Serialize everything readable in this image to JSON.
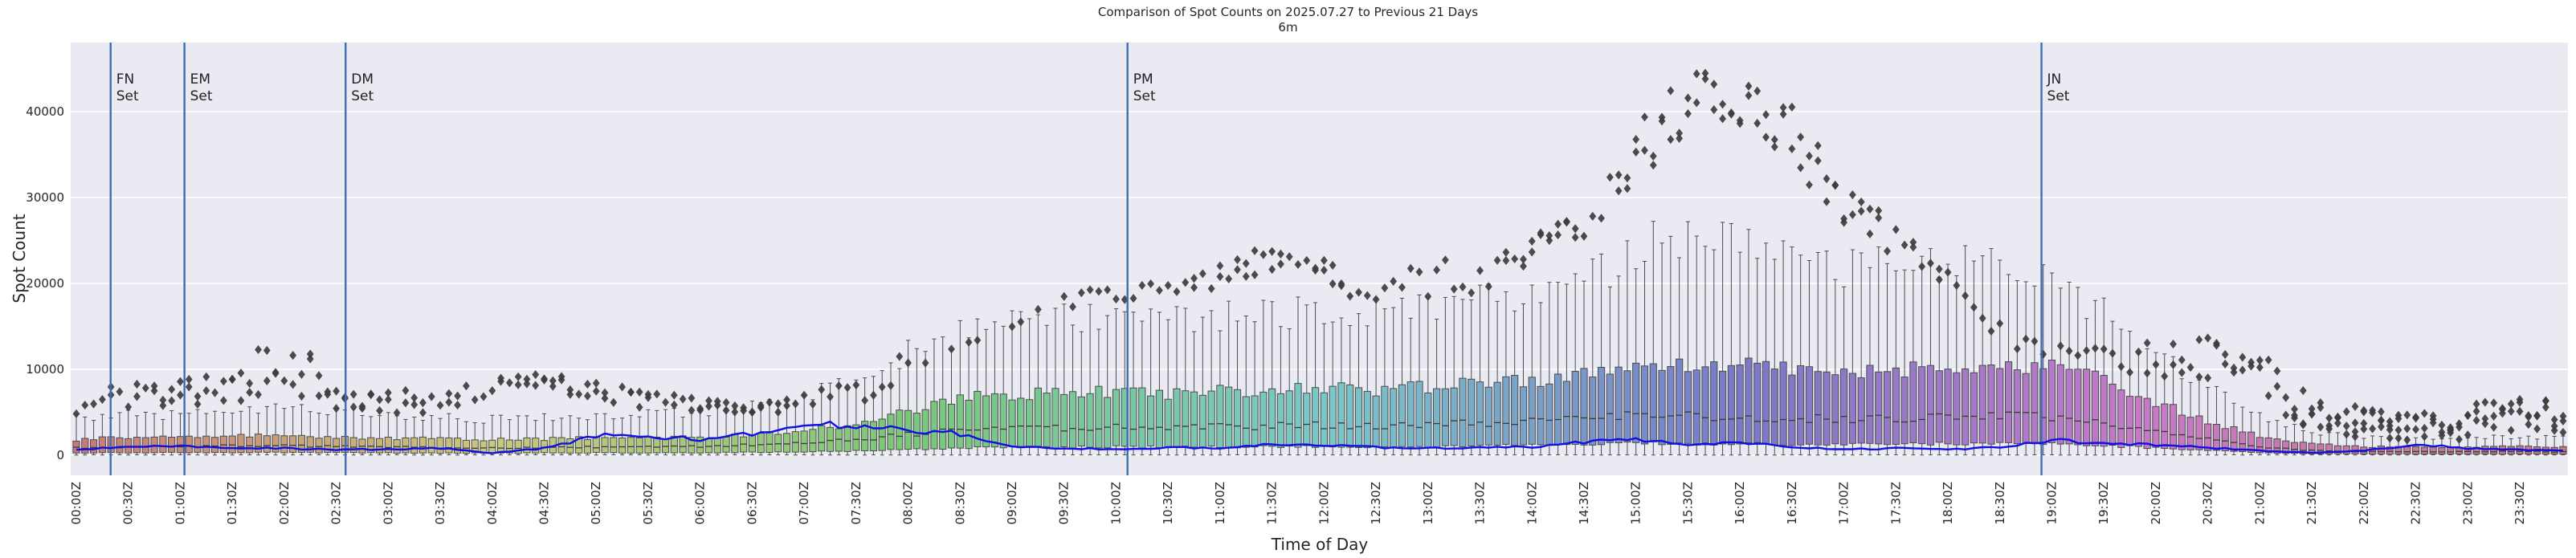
{
  "chart_data": {
    "type": "boxplot-timeseries",
    "title": "Comparison of Spot Counts on 2025.07.27 to Previous 21 Days",
    "subtitle": "6m",
    "band": "6m",
    "xlabel": "Time of Day",
    "ylabel": "Spot Count",
    "bins_per_day": 288,
    "bin_minutes": 5,
    "ylim": [
      -2300,
      48000
    ],
    "yticks": [
      0,
      10000,
      20000,
      30000,
      40000
    ],
    "x_tick_labels": [
      "00:00Z",
      "00:30Z",
      "01:00Z",
      "01:30Z",
      "02:00Z",
      "02:30Z",
      "03:00Z",
      "03:30Z",
      "04:00Z",
      "04:30Z",
      "05:00Z",
      "05:30Z",
      "06:00Z",
      "06:30Z",
      "07:00Z",
      "07:30Z",
      "08:00Z",
      "08:30Z",
      "09:00Z",
      "09:30Z",
      "10:00Z",
      "10:30Z",
      "11:00Z",
      "11:30Z",
      "12:00Z",
      "12:30Z",
      "13:00Z",
      "13:30Z",
      "14:00Z",
      "14:30Z",
      "15:00Z",
      "15:30Z",
      "16:00Z",
      "16:30Z",
      "17:00Z",
      "17:30Z",
      "18:00Z",
      "18:30Z",
      "19:00Z",
      "19:30Z",
      "20:00Z",
      "20:30Z",
      "21:00Z",
      "21:30Z",
      "22:00Z",
      "22:30Z",
      "23:00Z",
      "23:30Z"
    ],
    "sun_events": [
      {
        "grid": "FN",
        "label_lines": [
          "FN",
          "Set"
        ],
        "hour": 0.33
      },
      {
        "grid": "EM",
        "label_lines": [
          "EM",
          "Set"
        ],
        "hour": 1.04
      },
      {
        "grid": "DM",
        "label_lines": [
          "DM",
          "Set"
        ],
        "hour": 2.59
      },
      {
        "grid": "PM",
        "label_lines": [
          "PM",
          "Set"
        ],
        "hour": 10.11
      },
      {
        "grid": "JN",
        "label_lines": [
          "JN",
          "Set"
        ],
        "hour": 18.9
      }
    ],
    "box_stats_knots": {
      "hours_step": 0.5,
      "q1": [
        250,
        300,
        300,
        320,
        330,
        300,
        280,
        270,
        250,
        270,
        290,
        300,
        310,
        350,
        420,
        520,
        700,
        850,
        920,
        950,
        980,
        950,
        980,
        1010,
        1040,
        1010,
        1050,
        1100,
        1170,
        1230,
        1400,
        1350,
        1320,
        1290,
        1260,
        1290,
        1350,
        1380,
        1350,
        1140,
        830,
        540,
        300,
        180,
        140,
        130,
        130,
        140,
        130
      ],
      "median": [
        850,
        1000,
        1000,
        1100,
        1100,
        1000,
        950,
        900,
        850,
        900,
        950,
        1000,
        1050,
        1200,
        1450,
        1800,
        2400,
        2900,
        3100,
        3200,
        3300,
        3200,
        3300,
        3400,
        3500,
        3400,
        3550,
        3700,
        3900,
        4100,
        4700,
        4500,
        4400,
        4300,
        4200,
        4300,
        4500,
        4600,
        4500,
        3800,
        2800,
        1800,
        1000,
        550,
        420,
        400,
        400,
        450,
        400
      ],
      "q3": [
        1800,
        2100,
        2000,
        2200,
        2300,
        2100,
        2000,
        1900,
        1800,
        1900,
        2000,
        2000,
        2100,
        2400,
        2900,
        3600,
        5200,
        6600,
        7100,
        7300,
        7400,
        7200,
        7400,
        7600,
        7800,
        7600,
        7900,
        8300,
        8800,
        9300,
        11000,
        10600,
        10400,
        10000,
        9700,
        9900,
        10200,
        10500,
        10300,
        8800,
        6200,
        4000,
        2200,
        1300,
        1000,
        950,
        950,
        1050,
        950
      ],
      "whisker_hi": [
        4300,
        4900,
        4600,
        5300,
        5600,
        4900,
        4700,
        4400,
        4200,
        4500,
        4700,
        4800,
        5000,
        5700,
        7000,
        8700,
        12000,
        14200,
        15300,
        15800,
        16000,
        15600,
        16000,
        16400,
        16800,
        16400,
        17000,
        17900,
        19000,
        20000,
        23800,
        25500,
        24500,
        23000,
        21500,
        21800,
        22000,
        21500,
        20000,
        16500,
        11500,
        7800,
        4600,
        2700,
        2100,
        2000,
        2000,
        2200,
        2000
      ],
      "whisker_lo": 30
    },
    "outliers_knots": {
      "hours_step": 0.5,
      "lo": [
        4500,
        5000,
        5500,
        6000,
        8000,
        4500,
        5000,
        4500,
        7000,
        7500,
        6500,
        5200,
        5000,
        4800,
        5200,
        5800,
        9000,
        12800,
        14500,
        16000,
        17500,
        18500,
        19500,
        21000,
        19500,
        17500,
        16800,
        19000,
        21500,
        24500,
        29500,
        38000,
        38500,
        33500,
        26500,
        22500,
        19500,
        12500,
        10500,
        10000,
        8500,
        8000,
        6500,
        2500,
        1800,
        1500,
        1800,
        2200,
        2500
      ],
      "hi": [
        6500,
        8800,
        9000,
        9700,
        16800,
        7500,
        8000,
        7000,
        9300,
        9500,
        9000,
        7500,
        6800,
        6500,
        7500,
        8800,
        12500,
        13200,
        16000,
        19500,
        19800,
        20500,
        22500,
        24500,
        23000,
        19000,
        23500,
        22000,
        25500,
        28500,
        38500,
        45500,
        43500,
        41000,
        31500,
        27000,
        21500,
        15500,
        12800,
        12500,
        13500,
        13800,
        12000,
        6800,
        5500,
        5000,
        6000,
        6500,
        6500
      ],
      "per_bin_count": [
        1.0,
        1.5,
        1.5,
        2.0,
        1.5,
        2.0,
        2.0,
        1.5,
        1.5,
        2.0,
        1.5,
        1.5,
        1.5,
        1.5,
        1.0,
        1.0,
        0.5,
        0.3,
        0.5,
        1.0,
        1.0,
        1.0,
        1.5,
        1.5,
        1.5,
        1.0,
        0.8,
        1.0,
        1.5,
        1.5,
        2.0,
        2.0,
        2.0,
        2.0,
        2.0,
        1.5,
        1.0,
        1.0,
        0.5,
        1.0,
        1.5,
        2.0,
        2.0,
        3.0,
        3.5,
        3.5,
        3.0,
        3.0,
        3.0
      ]
    },
    "today_line": {
      "hours_step": 0.5,
      "values": [
        700,
        900,
        1100,
        900,
        800,
        650,
        700,
        800,
        250,
        800,
        2300,
        2200,
        1900,
        2600,
        3800,
        3200,
        3000,
        2500,
        950,
        800,
        700,
        900,
        800,
        1300,
        1200,
        900,
        800,
        900,
        950,
        1500,
        1900,
        1200,
        1500,
        900,
        700,
        800,
        700,
        900,
        1800,
        1300,
        1200,
        900,
        500,
        300,
        500,
        1300,
        800,
        600,
        500
      ]
    },
    "palette": {
      "type": "hue-cycle-over-24h",
      "saturation": 42,
      "lightness": 63,
      "box_edge": "#4c4c4c",
      "median_color": "#3a3a3a",
      "flier_color": "#3d3d3d"
    },
    "colors": {
      "figure_bg": "#ffffff",
      "plot_bg": "#eaeaf2",
      "grid": "#ffffff",
      "text": "#262626",
      "sun_event_line": "#3e6db5",
      "today_line": "#0f0fe6"
    },
    "legend": "none"
  }
}
